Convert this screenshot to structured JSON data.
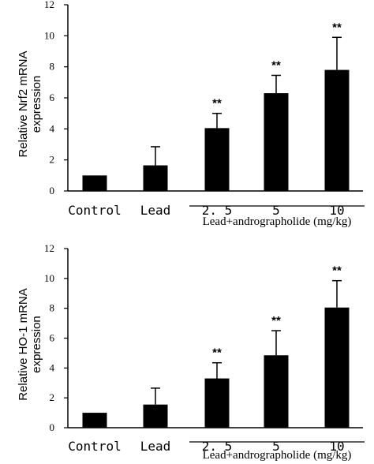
{
  "chart_data": [
    {
      "type": "bar",
      "ylabel": "Relative Nrf2 mRNA expression",
      "ylabel_lines": [
        "Relative Nrf2 mRNA",
        "expression"
      ],
      "ylim": [
        0,
        12
      ],
      "yticks": [
        "0",
        "2",
        "4",
        "6",
        "8",
        "10",
        "12"
      ],
      "categories": [
        "Control",
        "Lead",
        "2. 5",
        "5",
        "10"
      ],
      "group_label": "Lead+andrographolide (mg/kg)",
      "values": [
        1.0,
        1.65,
        4.05,
        6.3,
        7.8
      ],
      "errors": [
        0,
        1.2,
        0.95,
        1.15,
        2.1
      ],
      "annotations": [
        "",
        "",
        "**",
        "**",
        "**"
      ]
    },
    {
      "type": "bar",
      "ylabel": "Relative HO-1 mRNA expression",
      "ylabel_lines": [
        "Relative HO-1 mRNA",
        "expression"
      ],
      "ylim": [
        0,
        12
      ],
      "yticks": [
        "0",
        "2",
        "4",
        "6",
        "8",
        "10",
        "12"
      ],
      "categories": [
        "Control",
        "Lead",
        "2. 5",
        "5",
        "10"
      ],
      "group_label": "Lead+andrographolide (mg/kg)",
      "values": [
        1.0,
        1.55,
        3.3,
        4.85,
        8.05
      ],
      "errors": [
        0,
        1.1,
        1.05,
        1.65,
        1.8
      ],
      "annotations": [
        "",
        "",
        "**",
        "**",
        "**"
      ]
    }
  ]
}
